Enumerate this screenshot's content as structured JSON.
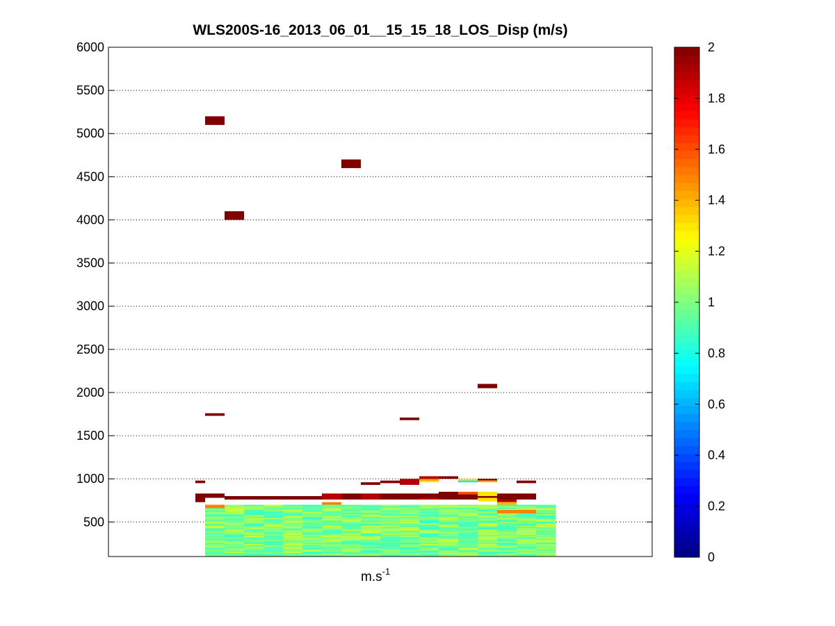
{
  "chart_data": {
    "type": "heatmap",
    "title": "WLS200S-16_2013_06_01__15_15_18_LOS_Disp (m/s)",
    "xlabel_base": "m.s",
    "xlabel_exp": "-1",
    "ylabel": "",
    "ylim": [
      100,
      6000
    ],
    "yticks": [
      500,
      1000,
      1500,
      2000,
      2500,
      3000,
      3500,
      4000,
      4500,
      5000,
      5500,
      6000
    ],
    "grid": "y-dotted",
    "colormap": "jet",
    "color_limits": [
      0,
      2
    ],
    "colorbar_ticks": [
      0,
      0.2,
      0.4,
      0.6,
      0.8,
      1,
      1.2,
      1.4,
      1.6,
      1.8,
      2
    ],
    "n_columns": 18,
    "data_columns": [
      0,
      17
    ],
    "dense_block": {
      "y_from": 100,
      "y_to": 700,
      "value_range": [
        0.85,
        1.15
      ]
    },
    "cells": [
      {
        "col": 0,
        "y0": 5100,
        "y1": 5200,
        "value": 2
      },
      {
        "col": 1,
        "y0": 4000,
        "y1": 4100,
        "value": 2
      },
      {
        "col": 7,
        "y0": 4600,
        "y1": 4700,
        "value": 2
      },
      {
        "col": 14,
        "y0": 2050,
        "y1": 2100,
        "value": 2
      },
      {
        "col": 0,
        "y0": 1730,
        "y1": 1760,
        "value": 2
      },
      {
        "col": 10,
        "y0": 1680,
        "y1": 1710,
        "value": 2
      },
      {
        "col": -1,
        "y0": 950,
        "y1": 980,
        "value": 2
      },
      {
        "col": 8,
        "y0": 930,
        "y1": 960,
        "value": 2
      },
      {
        "col": 9,
        "y0": 950,
        "y1": 980,
        "value": 2
      },
      {
        "col": 10,
        "y0": 930,
        "y1": 1000,
        "value": 1.9
      },
      {
        "col": 11,
        "y0": 1000,
        "y1": 1030,
        "value": 1.9
      },
      {
        "col": 11,
        "y0": 980,
        "y1": 1000,
        "value": 1.5
      },
      {
        "col": 11,
        "y0": 960,
        "y1": 980,
        "value": 1.3
      },
      {
        "col": 12,
        "y0": 1000,
        "y1": 1030,
        "value": 2
      },
      {
        "col": 13,
        "y0": 980,
        "y1": 1000,
        "value": 1.3
      },
      {
        "col": 13,
        "y0": 960,
        "y1": 980,
        "value": 0.7
      },
      {
        "col": 14,
        "y0": 980,
        "y1": 1000,
        "value": 2
      },
      {
        "col": 14,
        "y0": 960,
        "y1": 980,
        "value": 1.4
      },
      {
        "col": 16,
        "y0": 950,
        "y1": 980,
        "value": 2
      },
      {
        "col": -1,
        "y0": 730,
        "y1": 830,
        "value": 2
      },
      {
        "col": 0,
        "y0": 780,
        "y1": 830,
        "value": 2
      },
      {
        "col": 1,
        "y0": 760,
        "y1": 800,
        "value": 2
      },
      {
        "col": 2,
        "y0": 760,
        "y1": 800,
        "value": 2
      },
      {
        "col": 3,
        "y0": 760,
        "y1": 800,
        "value": 2
      },
      {
        "col": 4,
        "y0": 760,
        "y1": 800,
        "value": 2
      },
      {
        "col": 5,
        "y0": 760,
        "y1": 800,
        "value": 2
      },
      {
        "col": 6,
        "y0": 760,
        "y1": 830,
        "value": 1.9
      },
      {
        "col": 7,
        "y0": 760,
        "y1": 830,
        "value": 2
      },
      {
        "col": 8,
        "y0": 760,
        "y1": 830,
        "value": 1.9
      },
      {
        "col": 9,
        "y0": 760,
        "y1": 830,
        "value": 2
      },
      {
        "col": 10,
        "y0": 760,
        "y1": 830,
        "value": 2
      },
      {
        "col": 11,
        "y0": 780,
        "y1": 830,
        "value": 2
      },
      {
        "col": 11,
        "y0": 760,
        "y1": 780,
        "value": 1.9
      },
      {
        "col": 12,
        "y0": 760,
        "y1": 850,
        "value": 2
      },
      {
        "col": 13,
        "y0": 820,
        "y1": 850,
        "value": 1.6
      },
      {
        "col": 13,
        "y0": 760,
        "y1": 820,
        "value": 2
      },
      {
        "col": 14,
        "y0": 800,
        "y1": 850,
        "value": 1.3
      },
      {
        "col": 14,
        "y0": 780,
        "y1": 800,
        "value": 2
      },
      {
        "col": 14,
        "y0": 740,
        "y1": 780,
        "value": 1.3
      },
      {
        "col": 15,
        "y0": 760,
        "y1": 830,
        "value": 2
      },
      {
        "col": 15,
        "y0": 730,
        "y1": 760,
        "value": 1.9
      },
      {
        "col": 16,
        "y0": 760,
        "y1": 830,
        "value": 2
      },
      {
        "col": 0,
        "y0": 660,
        "y1": 700,
        "value": 1.5
      },
      {
        "col": 6,
        "y0": 700,
        "y1": 730,
        "value": 1.5
      },
      {
        "col": 15,
        "y0": 700,
        "y1": 730,
        "value": 1.4
      },
      {
        "col": 16,
        "y0": 600,
        "y1": 640,
        "value": 1.5
      },
      {
        "col": 15,
        "y0": 600,
        "y1": 640,
        "value": 1.5
      }
    ]
  }
}
